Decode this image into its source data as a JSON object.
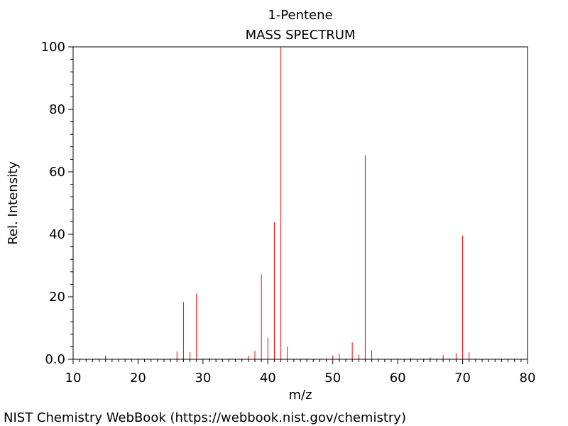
{
  "chart_data": {
    "type": "bar",
    "title": "1-Pentene",
    "subtitle": "MASS SPECTRUM",
    "xlabel": "m/z",
    "ylabel": "Rel. Intensity",
    "xlim": [
      10,
      80
    ],
    "ylim": [
      0,
      100
    ],
    "x_ticks": [
      10,
      20,
      30,
      40,
      50,
      60,
      70,
      80
    ],
    "x_tick_labels": [
      "10",
      "20",
      "30",
      "40",
      "50",
      "60",
      "70",
      "80"
    ],
    "y_ticks": [
      0,
      20,
      40,
      60,
      80,
      100
    ],
    "y_tick_labels": [
      "0.0",
      "20",
      "40",
      "60",
      "80",
      "100"
    ],
    "grid": false,
    "line_color": "#ff0000",
    "peaks": [
      {
        "mz": 15,
        "intensity": 1.2
      },
      {
        "mz": 26,
        "intensity": 2.5
      },
      {
        "mz": 27,
        "intensity": 18.3
      },
      {
        "mz": 28,
        "intensity": 2.3
      },
      {
        "mz": 29,
        "intensity": 21.0
      },
      {
        "mz": 31,
        "intensity": 0.4
      },
      {
        "mz": 37,
        "intensity": 1.1
      },
      {
        "mz": 38,
        "intensity": 2.7
      },
      {
        "mz": 39,
        "intensity": 27.2
      },
      {
        "mz": 40,
        "intensity": 6.9
      },
      {
        "mz": 41,
        "intensity": 43.9
      },
      {
        "mz": 42,
        "intensity": 100
      },
      {
        "mz": 43,
        "intensity": 4.1
      },
      {
        "mz": 50,
        "intensity": 1.2
      },
      {
        "mz": 51,
        "intensity": 1.8
      },
      {
        "mz": 53,
        "intensity": 5.4
      },
      {
        "mz": 54,
        "intensity": 1.5
      },
      {
        "mz": 55,
        "intensity": 65.3
      },
      {
        "mz": 56,
        "intensity": 2.9
      },
      {
        "mz": 62,
        "intensity": 0.4
      },
      {
        "mz": 65,
        "intensity": 0.6
      },
      {
        "mz": 67,
        "intensity": 1.3
      },
      {
        "mz": 69,
        "intensity": 1.9
      },
      {
        "mz": 70,
        "intensity": 39.6
      },
      {
        "mz": 71,
        "intensity": 2.2
      }
    ]
  },
  "credit": "NIST Chemistry WebBook (https://webbook.nist.gov/chemistry)"
}
